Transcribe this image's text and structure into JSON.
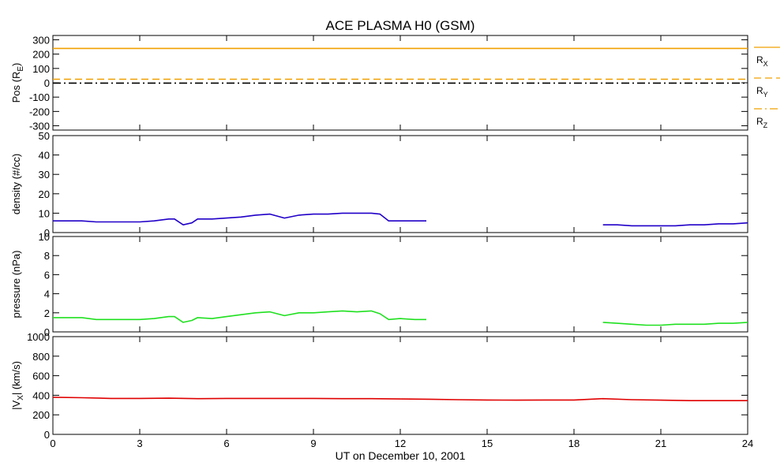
{
  "chart_data": {
    "type": "line",
    "title": "ACE PLASMA H0 (GSM)",
    "xlabel": "UT on December 10, 2001",
    "xlim": [
      0,
      24
    ],
    "xticks": [
      "0",
      "3",
      "6",
      "9",
      "12",
      "15",
      "18",
      "21",
      "24"
    ],
    "panels": [
      {
        "id": "pos",
        "ylabel": "Pos (R",
        "ylabel_sub": "E",
        "ylabel_close": ")",
        "ylim": [
          -330,
          330
        ],
        "yticks": [
          "300",
          "200",
          "100",
          "0",
          "-100",
          "-200",
          "-300"
        ],
        "legend": [
          {
            "label": "R",
            "sub": "X",
            "style": "solid"
          },
          {
            "label": "R",
            "sub": "Y",
            "style": "dashed"
          },
          {
            "label": "R",
            "sub": "Z",
            "style": "dashdot"
          }
        ],
        "series": [
          {
            "name": "RX",
            "color": "#f0a000",
            "style": "solid",
            "x": [
              0,
              24
            ],
            "y": [
              240,
              240
            ]
          },
          {
            "name": "RY",
            "color": "#f0a000",
            "style": "dashed",
            "x": [
              0,
              24
            ],
            "y": [
              25,
              25
            ]
          },
          {
            "name": "RZ",
            "color": "#000000",
            "style": "dashdot",
            "x": [
              0,
              24
            ],
            "y": [
              -2,
              -2
            ]
          }
        ]
      },
      {
        "id": "density",
        "ylabel": "density (#/cc)",
        "ylim": [
          0,
          50
        ],
        "yticks": [
          "50",
          "40",
          "30",
          "20",
          "10",
          "0"
        ],
        "series": [
          {
            "name": "density",
            "color": "#2000c8",
            "segments": [
              {
                "x": [
                  0,
                  0.5,
                  1,
                  1.5,
                  2,
                  2.5,
                  3,
                  3.5,
                  4,
                  4.2,
                  4.5,
                  4.8,
                  5,
                  5.5,
                  6,
                  6.5,
                  7,
                  7.5,
                  8,
                  8.5,
                  9,
                  9.5,
                  10,
                  10.5,
                  11,
                  11.3,
                  11.6,
                  12,
                  12.5,
                  12.9
                ],
                "y": [
                  6,
                  6,
                  6,
                  5.5,
                  5.5,
                  5.5,
                  5.5,
                  6,
                  7,
                  7,
                  4,
                  5,
                  7,
                  7,
                  7.5,
                  8,
                  9,
                  9.5,
                  7.5,
                  9,
                  9.5,
                  9.5,
                  10,
                  10,
                  10,
                  9.5,
                  6,
                  6,
                  6,
                  6
                ]
              },
              {
                "x": [
                  19,
                  19.5,
                  20,
                  20.5,
                  21,
                  21.5,
                  22,
                  22.5,
                  23,
                  23.5,
                  24
                ],
                "y": [
                  4,
                  4,
                  3.5,
                  3.5,
                  3.5,
                  3.5,
                  4,
                  4,
                  4.5,
                  4.5,
                  5
                ]
              }
            ]
          }
        ]
      },
      {
        "id": "pressure",
        "ylabel": "pressure (nPa)",
        "ylim": [
          0,
          10
        ],
        "yticks": [
          "10",
          "8",
          "6",
          "4",
          "2",
          "0"
        ],
        "series": [
          {
            "name": "pressure",
            "color": "#20e020",
            "segments": [
              {
                "x": [
                  0,
                  0.5,
                  1,
                  1.5,
                  2,
                  2.5,
                  3,
                  3.5,
                  4,
                  4.2,
                  4.5,
                  4.8,
                  5,
                  5.5,
                  6,
                  6.5,
                  7,
                  7.5,
                  8,
                  8.5,
                  9,
                  9.5,
                  10,
                  10.5,
                  11,
                  11.3,
                  11.6,
                  12,
                  12.5,
                  12.9
                ],
                "y": [
                  1.5,
                  1.5,
                  1.5,
                  1.3,
                  1.3,
                  1.3,
                  1.3,
                  1.4,
                  1.6,
                  1.6,
                  1.0,
                  1.2,
                  1.5,
                  1.4,
                  1.6,
                  1.8,
                  2.0,
                  2.1,
                  1.7,
                  2.0,
                  2.0,
                  2.1,
                  2.2,
                  2.1,
                  2.2,
                  1.9,
                  1.3,
                  1.4,
                  1.3,
                  1.3
                ]
              },
              {
                "x": [
                  19,
                  19.5,
                  20,
                  20.5,
                  21,
                  21.5,
                  22,
                  22.5,
                  23,
                  23.5,
                  24
                ],
                "y": [
                  1.0,
                  0.9,
                  0.8,
                  0.7,
                  0.7,
                  0.8,
                  0.8,
                  0.8,
                  0.9,
                  0.9,
                  1.0
                ]
              }
            ]
          }
        ]
      },
      {
        "id": "vx",
        "ylabel": "|V",
        "ylabel_sub": "X",
        "ylabel_close": "| (km/s)",
        "ylim": [
          0,
          1000
        ],
        "yticks": [
          "1000",
          "800",
          "600",
          "400",
          "200",
          "0"
        ],
        "series": [
          {
            "name": "|VX|",
            "color": "#e00000",
            "segments": [
              {
                "x": [
                  0,
                  1,
                  2,
                  3,
                  4,
                  5,
                  6,
                  7,
                  8,
                  9,
                  10,
                  11,
                  12,
                  13,
                  14,
                  15,
                  16,
                  17,
                  18,
                  19,
                  20,
                  21,
                  22,
                  23,
                  24
                ],
                "y": [
                  380,
                  375,
                  368,
                  368,
                  370,
                  365,
                  368,
                  368,
                  368,
                  368,
                  365,
                  365,
                  362,
                  360,
                  355,
                  352,
                  350,
                  352,
                  352,
                  365,
                  355,
                  350,
                  345,
                  345,
                  345
                ]
              }
            ]
          }
        ]
      }
    ]
  }
}
